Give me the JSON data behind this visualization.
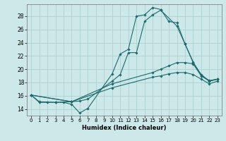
{
  "background_color": "#cde8e8",
  "grid_color": "#a8cccc",
  "line_color": "#1a6b6b",
  "xlim": [
    -0.5,
    23.5
  ],
  "ylim": [
    13.0,
    29.8
  ],
  "xlabel": "Humidex (Indice chaleur)",
  "xticks": [
    0,
    1,
    2,
    3,
    4,
    5,
    6,
    7,
    8,
    9,
    10,
    11,
    12,
    13,
    14,
    15,
    16,
    17,
    18,
    19,
    20,
    21,
    22,
    23
  ],
  "yticks": [
    14,
    16,
    18,
    20,
    22,
    24,
    26,
    28
  ],
  "series": [
    {
      "x": [
        0,
        1,
        2,
        3,
        4,
        5,
        6,
        7,
        10,
        11,
        12,
        13,
        14,
        15,
        16,
        17,
        18,
        19,
        20,
        21,
        22,
        23
      ],
      "y": [
        16.1,
        15.0,
        15.0,
        15.0,
        15.0,
        14.7,
        13.4,
        14.1,
        19.3,
        22.3,
        23.0,
        28.0,
        28.2,
        29.3,
        29.0,
        27.2,
        27.0,
        23.8,
        21.1,
        19.0,
        18.3,
        18.5
      ]
    },
    {
      "x": [
        0,
        1,
        3,
        5,
        6,
        7,
        10,
        11,
        12,
        13,
        14,
        15,
        16,
        18,
        19,
        20,
        21,
        22,
        23
      ],
      "y": [
        16.1,
        15.1,
        15.0,
        15.1,
        15.2,
        15.5,
        18.2,
        19.2,
        22.5,
        22.5,
        27.2,
        28.2,
        28.9,
        26.5,
        23.8,
        21.0,
        19.2,
        18.2,
        18.5
      ]
    },
    {
      "x": [
        0,
        5,
        10,
        15,
        16,
        17,
        18,
        19,
        20,
        21,
        22,
        23
      ],
      "y": [
        16.1,
        15.1,
        17.8,
        19.5,
        20.0,
        20.5,
        21.0,
        21.0,
        20.8,
        19.0,
        18.2,
        18.5
      ]
    },
    {
      "x": [
        0,
        5,
        10,
        15,
        16,
        17,
        18,
        19,
        20,
        21,
        22,
        23
      ],
      "y": [
        16.1,
        15.1,
        17.2,
        18.8,
        19.0,
        19.3,
        19.5,
        19.5,
        19.2,
        18.5,
        17.8,
        18.2
      ]
    }
  ]
}
